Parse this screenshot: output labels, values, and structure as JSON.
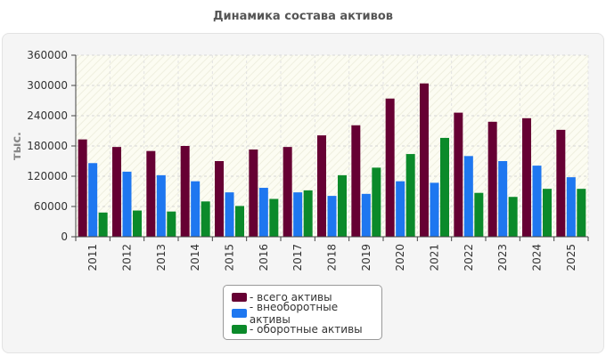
{
  "chart_data": {
    "type": "bar",
    "title": "Динамика состава активов",
    "ylabel": "тыс.",
    "xlabel": "",
    "ylim": [
      0,
      360000
    ],
    "yticks": [
      0,
      60000,
      120000,
      180000,
      240000,
      300000,
      360000
    ],
    "grid": true,
    "legend_position": "bottom",
    "categories": [
      "2011",
      "2012",
      "2013",
      "2014",
      "2015",
      "2016",
      "2017",
      "2018",
      "2019",
      "2020",
      "2021",
      "2022",
      "2023",
      "2024",
      "2025"
    ],
    "series": [
      {
        "name": "- всего активы",
        "color": "#660033",
        "values": [
          193000,
          178000,
          170000,
          180000,
          150000,
          173000,
          178000,
          201000,
          221000,
          274000,
          304000,
          246000,
          228000,
          235000,
          212000
        ]
      },
      {
        "name": "- внеоборотные активы",
        "color": "#1e77f0",
        "values": [
          146000,
          129000,
          122000,
          110000,
          88000,
          97000,
          88000,
          81000,
          85000,
          110000,
          107000,
          160000,
          150000,
          141000,
          118000
        ]
      },
      {
        "name": "- оборотные активы",
        "color": "#0b8a2a",
        "values": [
          48000,
          52000,
          50000,
          70000,
          61000,
          75000,
          92000,
          122000,
          137000,
          164000,
          196000,
          87000,
          79000,
          95000,
          95000
        ]
      }
    ]
  }
}
